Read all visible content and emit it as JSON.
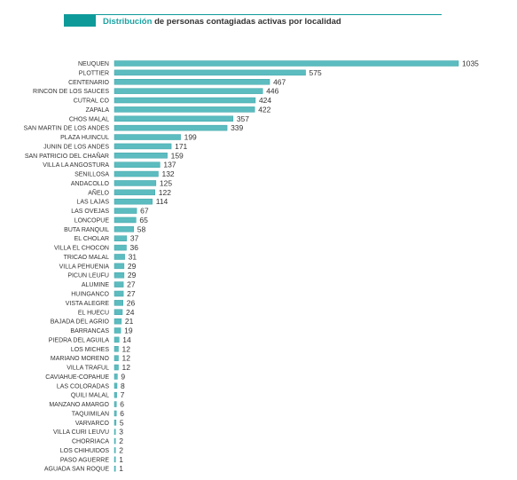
{
  "title": {
    "accent": "Distribución",
    "rest": "de personas contagiadas activas por localidad"
  },
  "colors": {
    "bar": "#5cbcbf",
    "bar_edge": "#3fa6aa",
    "accent": "#0f9a9a"
  },
  "chart_data": {
    "type": "bar",
    "orientation": "horizontal",
    "title": "Distribución de personas contagiadas activas por localidad",
    "grid": false,
    "legend": "none",
    "xlim": [
      0,
      1035
    ],
    "categories": [
      "NEUQUEN",
      "PLOTTIER",
      "CENTENARIO",
      "RINCON DE LOS SAUCES",
      "CUTRAL CO",
      "ZAPALA",
      "CHOS MALAL",
      "SAN MARTIN DE LOS ANDES",
      "PLAZA HUINCUL",
      "JUNIN DE LOS ANDES",
      "SAN PATRICIO DEL CHAÑAR",
      "VILLA LA ANGOSTURA",
      "SENILLOSA",
      "ANDACOLLO",
      "AÑELO",
      "LAS LAJAS",
      "LAS OVEJAS",
      "LONCOPUE",
      "BUTA RANQUIL",
      "EL CHOLAR",
      "VILLA EL CHOCON",
      "TRICAO MALAL",
      "VILLA PEHUENIA",
      "PICUN LEUFU",
      "ALUMINE",
      "HUINGANCO",
      "VISTA ALEGRE",
      "EL HUECU",
      "BAJADA DEL AGRIO",
      "BARRANCAS",
      "PIEDRA DEL AGUILA",
      "LOS MICHES",
      "MARIANO MORENO",
      "VILLA TRAFUL",
      "CAVIAHUE-COPAHUE",
      "LAS COLORADAS",
      "QUILI MALAL",
      "MANZANO AMARGO",
      "TAQUIMILAN",
      "VARVARCO",
      "VILLA CURI LEUVU",
      "CHORRIACA",
      "LOS CHIHUIDOS",
      "PASO AGUERRE",
      "AGUADA SAN ROQUE"
    ],
    "values": [
      1035,
      575,
      467,
      446,
      424,
      422,
      357,
      339,
      199,
      171,
      159,
      137,
      132,
      125,
      122,
      114,
      67,
      65,
      58,
      37,
      36,
      31,
      29,
      29,
      27,
      27,
      26,
      24,
      21,
      19,
      14,
      12,
      12,
      12,
      9,
      8,
      7,
      6,
      6,
      5,
      3,
      2,
      2,
      1,
      1
    ]
  }
}
